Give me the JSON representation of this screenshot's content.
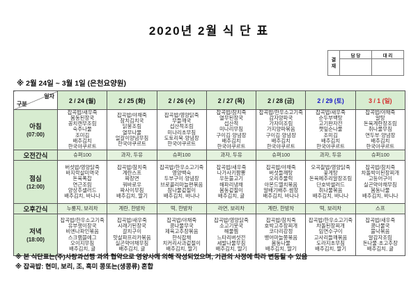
{
  "title": "2020년 2월 식 단 표",
  "approval": {
    "stamp_label": "결재",
    "col1": "담 당",
    "col2": "대 리"
  },
  "subtitle": "※ 2월 24일 ~ 3월 1일 (은천요양원)",
  "corner": {
    "top": "일자",
    "bottom": "구분"
  },
  "colors": {
    "header_green": "#d7ecd0",
    "snack_green": "#e4f2de",
    "weekday": "#111111",
    "saturday": "#1515c8",
    "sunday": "#d42a2a"
  },
  "days": [
    {
      "label": "2 / 24 (월)",
      "color": "#111111"
    },
    {
      "label": "2 / 25 (화)",
      "color": "#111111"
    },
    {
      "label": "2 / 26 (수)",
      "color": "#111111"
    },
    {
      "label": "2 / 27 (목)",
      "color": "#111111"
    },
    {
      "label": "2 / 28 (금)",
      "color": "#111111"
    },
    {
      "label": "2 / 29 (토)",
      "color": "#1515c8"
    },
    {
      "label": "3 / 1 (일)",
      "color": "#d42a2a"
    }
  ],
  "rows": [
    {
      "label": "아침",
      "time": "(07:00)",
      "snack": false,
      "css": "r-breakfast",
      "cells": [
        [
          "잡곡밥/새우죽",
          "봄동된장국",
          "꽁치캔무조림",
          "숙주나물",
          "조미김",
          "배추김치",
          "한국야쿠르트"
        ],
        [
          "잡곡밥/야채죽",
          "참치김치국",
          "닭봉조림",
          "열무나물",
          "얼갈이양념무침",
          "한국야쿠르트"
        ],
        [
          "잡곡밥/영양닭죽",
          "무들깨국",
          "섭산적조림",
          "미나리초무침",
          "도토리묵·양념장",
          "한국야쿠르트"
        ],
        [
          "잡곡밥/참치죽",
          "열무된장국",
          "섭산적",
          "미나리무침",
          "구이김·양념장",
          "배추김치",
          "한국야쿠르트"
        ],
        [
          "잡곡밥/한우소고기죽",
          "감자양파국",
          "가자미조림",
          "가지양파볶음",
          "구이김·양념장",
          "배추김치",
          "한국야쿠르트"
        ],
        [
          "잡곡밥/새우죽",
          "순두부백탕",
          "고기완자전",
          "깻잎순나물",
          "조미김",
          "배추김치",
          "한국야쿠르트"
        ],
        [
          "잡곡밥/야채죽",
          "알탕",
          "돈육계란장조림",
          "취나물무침",
          "연두부·양념장",
          "배추김치",
          "한국야쿠르트"
        ]
      ]
    },
    {
      "label": "오전간식",
      "time": "",
      "snack": true,
      "css": "snackrow",
      "cells": [
        [
          "슈퍼100"
        ],
        [
          "과자, 두유"
        ],
        [
          "슈퍼100"
        ],
        [
          "과자, 두유"
        ],
        [
          "슈퍼100"
        ],
        [
          "과자, 두유"
        ],
        [
          "슈퍼100"
        ]
      ]
    },
    {
      "label": "점심",
      "time": "(12:00)",
      "snack": false,
      "css": "r-lunch",
      "cells": [
        [
          "버섯밥/영양닭죽",
          "바지락살미역국",
          "돈육폭찹",
          "연근조림",
          "양상추샐러드",
          "배추김치, 바나나"
        ],
        [
          "잡곡밥/참치죽",
          "계란스프",
          "짜장면",
          "꿔바로우",
          "짜사이무침",
          "배추김치, 딸기"
        ],
        [
          "잡곡밥/한우소고기죽",
          "영양백숙",
          "두부구이·양념장",
          "브로콜리마늘편볶음",
          "참나물겉절이",
          "배추김치, 바나나"
        ],
        [
          "잡곡밥/새우죽",
          "나가사키짬뽕",
          "우둔불고기",
          "해파리냉채",
          "봄동겉절이",
          "배추김치, 귤"
        ],
        [
          "잡곡밥/야채죽",
          "버섯들깨탕",
          "오리주물럭",
          "아몬드멸치볶음",
          "알배기배추·쌈장",
          "배추김치, 바나나"
        ],
        [
          "오곡찰밥/영양닭죽",
          "꽃게탕",
          "돈육메추리알장조림",
          "단호박샐러드",
          "취나물볶음",
          "배추김치, 바나나"
        ],
        [
          "잡곡밥/참치죽",
          "차돌박이된장찌개",
          "고등어구이",
          "실곤약야채무침",
          "봄동나물",
          "배추김치, 바나나"
        ]
      ]
    },
    {
      "label": "오후간식",
      "time": "",
      "snack": true,
      "css": "snackrow",
      "cells": [
        [
          "누룽지, 보리차"
        ],
        [
          "계란, 한방차"
        ],
        [
          "떡, 한방차"
        ],
        [
          "라면, 보리차"
        ],
        [
          "계란, 한방차"
        ],
        [
          "떡, 보리차"
        ],
        [
          "스프"
        ]
      ]
    },
    {
      "label": "저녁",
      "time": "(18:00)",
      "snack": false,
      "css": "r-dinner",
      "cells": [
        [
          "잡곡밥/한우소고기죽",
          "유부쟁이장국",
          "비엔나파인볶음",
          "스크램블에그",
          "오이지무침",
          "배추김치, 귤"
        ],
        [
          "잡곡밥/새우죽",
          "시래기된장국",
          "갈치구이",
          "맛살파프리카볶음",
          "실곤약야채무침",
          "배추김치, 귤"
        ],
        [
          "잡곡밥/야채죽",
          "콩나물무국",
          "제육고추장볶음",
          "한식잡채",
          "치커리사과겉절이",
          "배추김치, 딸기"
        ],
        [
          "잡곡밥/영양닭죽",
          "소고기뭇국",
          "해물찜",
          "느타리버섯전",
          "세발나물무침",
          "배추김치, 딸기"
        ],
        [
          "잡곡밥/참치죽",
          "호박고추장찌개",
          "코다리강정",
          "뱅어마늘쫑볶음",
          "봄동나물",
          "배추김치, 딸기"
        ],
        [
          "잡곡밥/한우소고기죽",
          "차돌된장찌개",
          "임연수구이",
          "고사리들깨볶음",
          "도라지초무침",
          "배추김치, 딸기"
        ],
        [
          "잡곡밥/새우죽",
          "콩나물국",
          "불낙볶음",
          "알감자조림",
          "돈나물·초고추장",
          "배추김치, 귤"
        ]
      ]
    }
  ],
  "notes": {
    "line1": "※ 본 식단표는(주)사랑과선행 과의 협약으로 영양사에 의해 작성되었으며, 기관의 사정에 따라 변동될 수 있음",
    "line2": "※ 잡곡밥: 현미, 보리, 조, 흑미 콩또는(생콩류) 혼합"
  }
}
